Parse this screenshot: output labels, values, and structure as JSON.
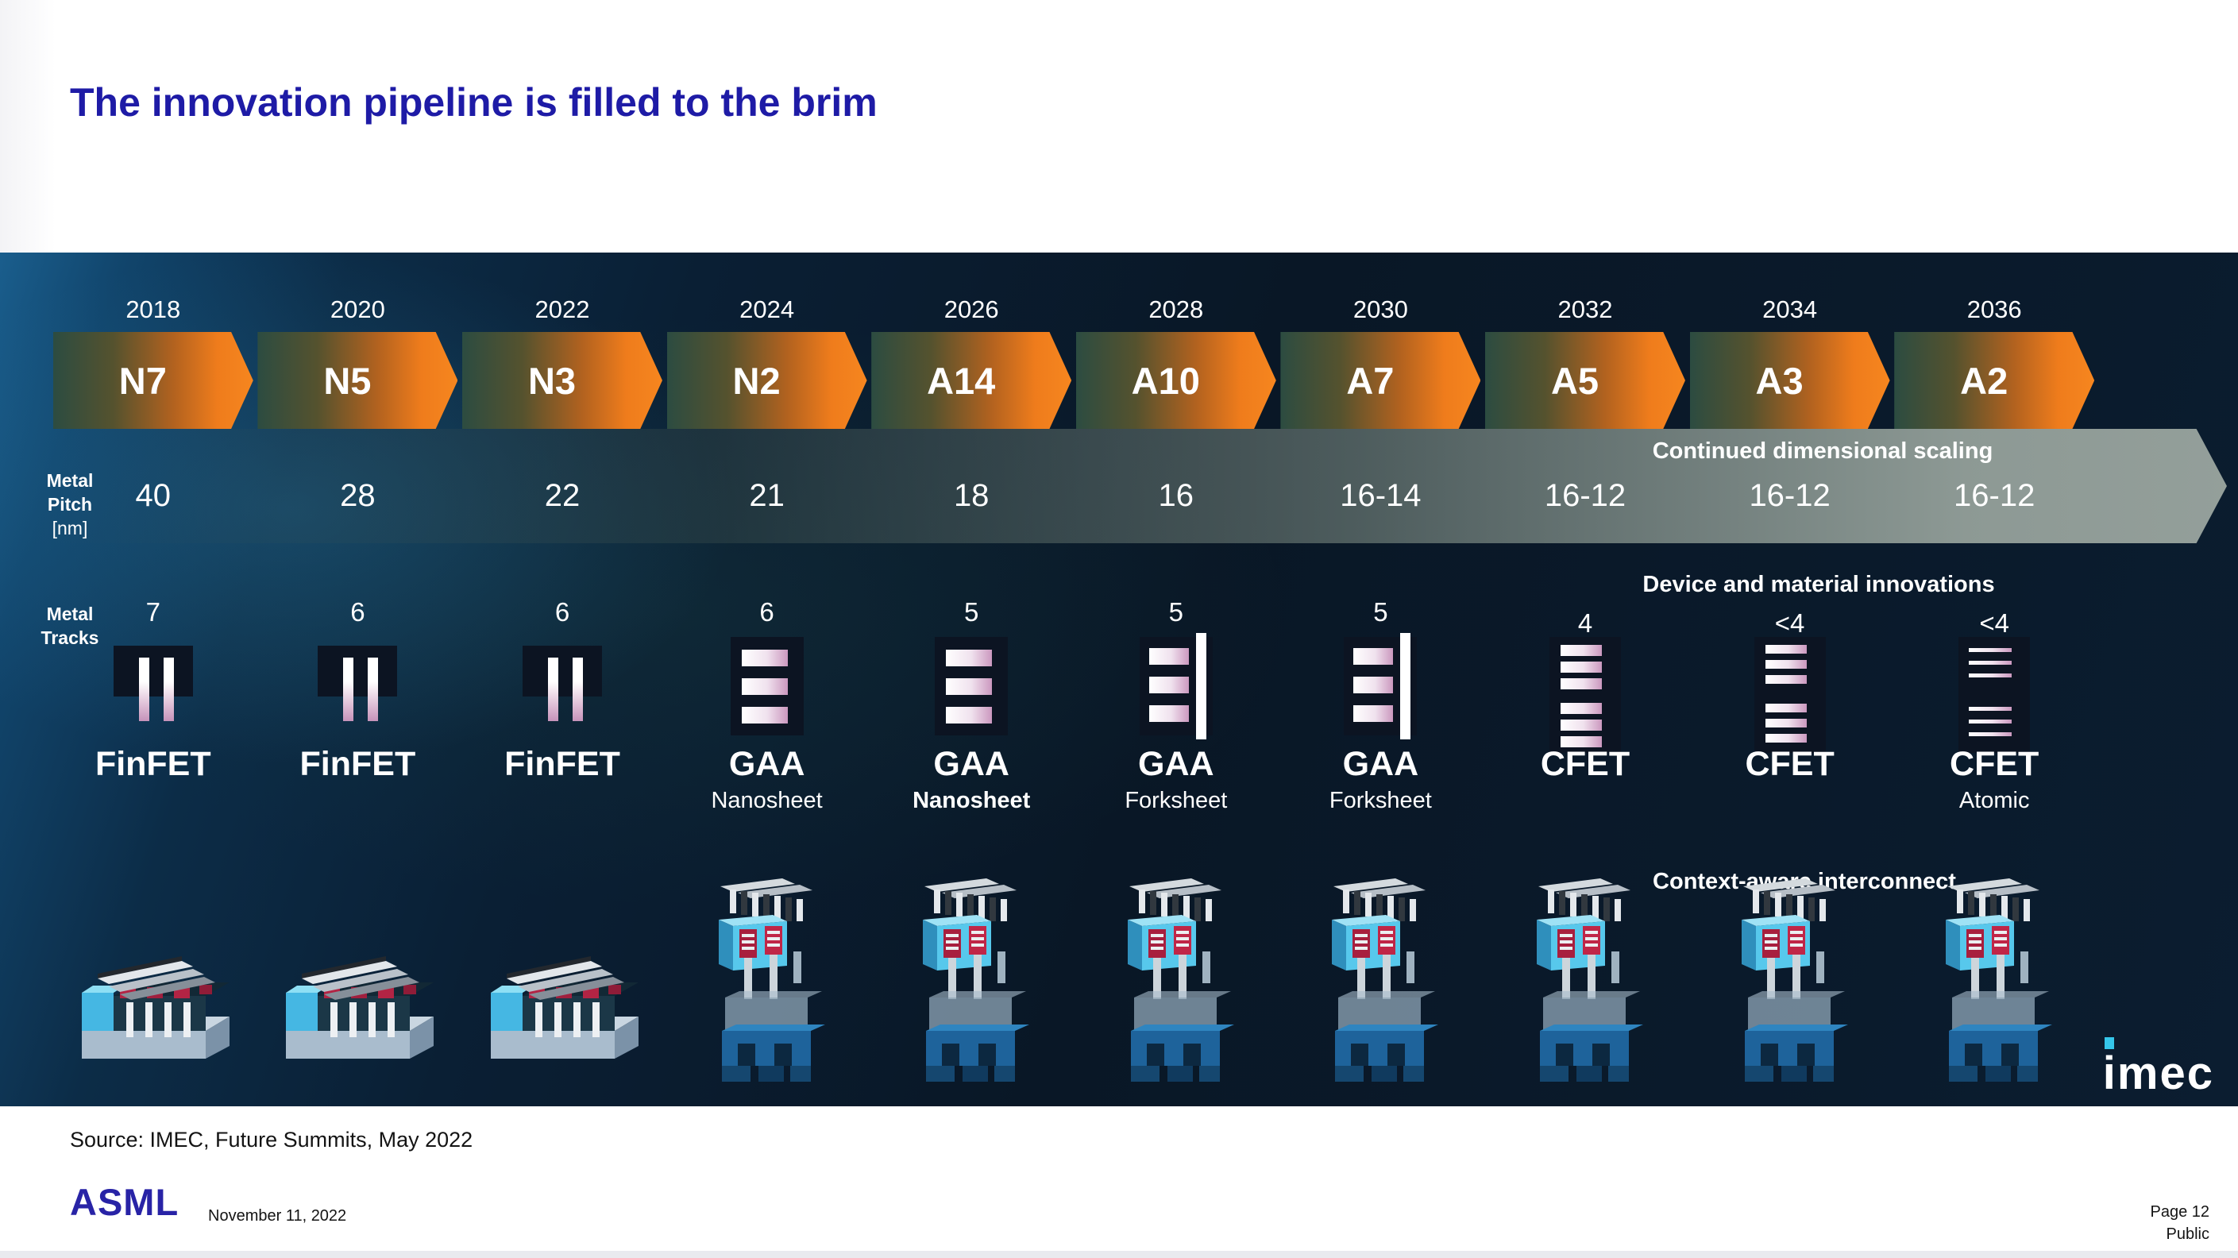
{
  "slide": {
    "title": "The innovation pipeline is filled to the brim",
    "source_note": "Source: IMEC, Future Summits, May 2022",
    "brand": "ASML",
    "date": "November 11, 2022",
    "page": "Page 12",
    "classification": "Public",
    "imec_logo": "imec"
  },
  "roadmap": {
    "row_labels": {
      "pitch": [
        "Metal",
        "Pitch",
        "[nm]"
      ],
      "tracks": [
        "Metal",
        "Tracks"
      ]
    },
    "annotations": {
      "scaling": "Continued dimensional scaling",
      "device": "Device and material innovations",
      "interconnect": "Context-aware interconnect"
    },
    "columns": [
      {
        "year": "2018",
        "node": "N7",
        "pitch": "40",
        "tracks": "7",
        "device": "FinFET",
        "device_sub": "",
        "sub_bold": false,
        "icon": "finfet",
        "render": "wide"
      },
      {
        "year": "2020",
        "node": "N5",
        "pitch": "28",
        "tracks": "6",
        "device": "FinFET",
        "device_sub": "",
        "sub_bold": false,
        "icon": "finfet",
        "render": "wide"
      },
      {
        "year": "2022",
        "node": "N3",
        "pitch": "22",
        "tracks": "6",
        "device": "FinFET",
        "device_sub": "",
        "sub_bold": false,
        "icon": "finfet",
        "render": "wide"
      },
      {
        "year": "2024",
        "node": "N2",
        "pitch": "21",
        "tracks": "6",
        "device": "GAA",
        "device_sub": "Nanosheet",
        "sub_bold": false,
        "icon": "nanosheet",
        "render": "tall"
      },
      {
        "year": "2026",
        "node": "A14",
        "pitch": "18",
        "tracks": "5",
        "device": "GAA",
        "device_sub": "Nanosheet",
        "sub_bold": true,
        "icon": "nanosheet",
        "render": "tall"
      },
      {
        "year": "2028",
        "node": "A10",
        "pitch": "16",
        "tracks": "5",
        "device": "GAA",
        "device_sub": "Forksheet",
        "sub_bold": false,
        "icon": "forksheet",
        "render": "tall"
      },
      {
        "year": "2030",
        "node": "A7",
        "pitch": "16-14",
        "tracks": "5",
        "device": "GAA",
        "device_sub": "Forksheet",
        "sub_bold": false,
        "icon": "forksheet",
        "render": "tall"
      },
      {
        "year": "2032",
        "node": "A5",
        "pitch": "16-12",
        "tracks": "4",
        "device": "CFET",
        "device_sub": "",
        "sub_bold": false,
        "icon": "cfet",
        "render": "tall"
      },
      {
        "year": "2034",
        "node": "A3",
        "pitch": "16-12",
        "tracks": "<4",
        "device": "CFET",
        "device_sub": "",
        "sub_bold": false,
        "icon": "cfet-thin",
        "render": "tall"
      },
      {
        "year": "2036",
        "node": "A2",
        "pitch": "16-12",
        "tracks": "<4",
        "device": "CFET",
        "device_sub": "Atomic",
        "sub_bold": false,
        "icon": "cfet-atomic",
        "render": "tall"
      }
    ]
  },
  "colors": {
    "accent_orange": "#F58220",
    "title_blue": "#1E1BA6",
    "asml_blue": "#2823A6",
    "icon_bar_pink": "#C693BA",
    "icon_box_navy": "#0C1422",
    "band_gray": "#93A09A",
    "imec_cyan": "#35C6EA"
  }
}
